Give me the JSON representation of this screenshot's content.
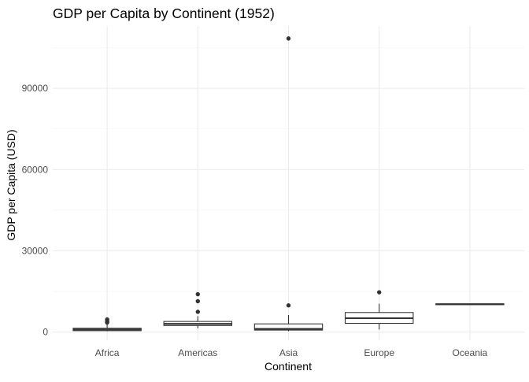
{
  "chart_data": {
    "type": "boxplot",
    "title": "GDP per Capita by Continent (1952)",
    "xlabel": "Continent",
    "ylabel": "GDP per Capita (USD)",
    "ylim": [
      -3000,
      113000
    ],
    "y_ticks": [
      0,
      30000,
      60000,
      90000
    ],
    "grid": true,
    "legend": "none",
    "categories": [
      "Africa",
      "Americas",
      "Asia",
      "Europe",
      "Oceania"
    ],
    "boxes": [
      {
        "category": "Africa",
        "lower_whisker": 299,
        "q1": 535,
        "median": 987,
        "q3": 1455,
        "upper_whisker": 2800,
        "outliers": [
          3500,
          3800,
          4200,
          4700
        ]
      },
      {
        "category": "Americas",
        "lower_whisker": 1400,
        "q1": 2430,
        "median": 3050,
        "q3": 3940,
        "upper_whisker": 5900,
        "outliers": [
          7500,
          11400,
          13990
        ]
      },
      {
        "category": "Asia",
        "lower_whisker": 331,
        "q1": 750,
        "median": 1210,
        "q3": 3040,
        "upper_whisker": 6300,
        "outliers": [
          9870,
          108382
        ]
      },
      {
        "category": "Europe",
        "lower_whisker": 973,
        "q1": 3240,
        "median": 5140,
        "q3": 7240,
        "upper_whisker": 10500,
        "outliers": [
          14700
        ]
      },
      {
        "category": "Oceania",
        "lower_whisker": 10040,
        "q1": 10130,
        "median": 10300,
        "q3": 10450,
        "upper_whisker": 10560,
        "outliers": []
      }
    ]
  }
}
